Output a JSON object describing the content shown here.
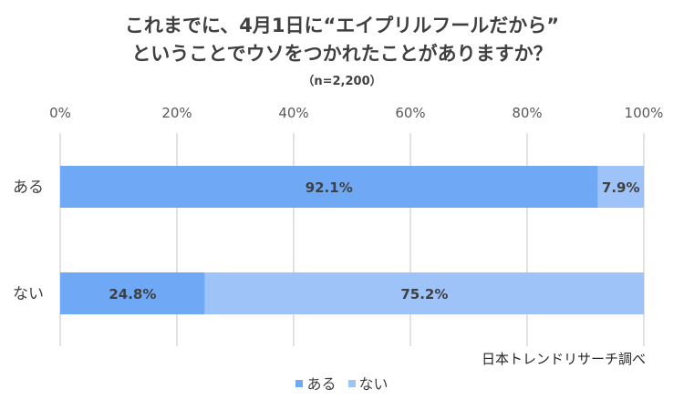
{
  "chart_data": {
    "type": "bar",
    "orientation": "horizontal",
    "stacked": true,
    "title_lines": [
      "これまでに、4月1日に“エイプリルフールだから”",
      "ということでウソをつかれたことがありますか？"
    ],
    "subtitle": "（n=2,200）",
    "categories": [
      "ある",
      "ない"
    ],
    "series": [
      {
        "name": "ある",
        "values": [
          92.1,
          24.8
        ],
        "labels": [
          "92.1%",
          "24.8%"
        ],
        "color": "#6fa8f5"
      },
      {
        "name": "ない",
        "values": [
          7.9,
          75.2
        ],
        "labels": [
          "7.9%",
          "75.2%"
        ],
        "color": "#9dc3f8"
      }
    ],
    "x_ticks": [
      "0%",
      "20%",
      "40%",
      "60%",
      "80%",
      "100%"
    ],
    "xlim": [
      0,
      100
    ],
    "axis_position": "top",
    "grid": true,
    "legend_position": "bottom",
    "source": "日本トレンドリサーチ調べ"
  }
}
